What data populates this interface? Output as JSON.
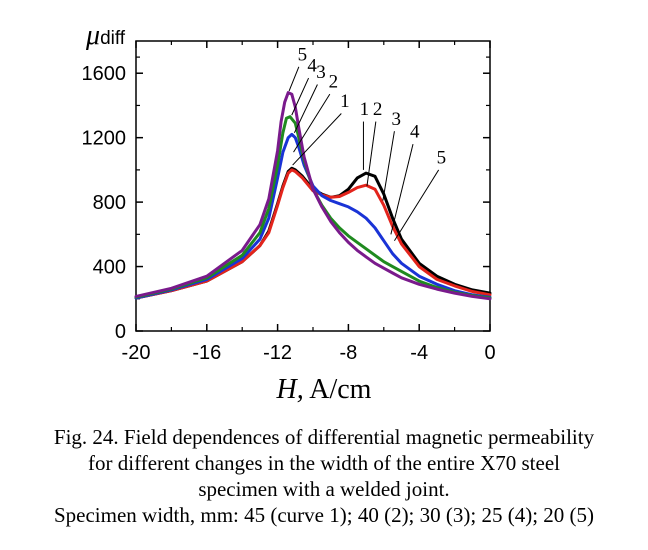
{
  "caption": {
    "line1": "Fig. 24. Field dependences of differential magnetic permeability",
    "line2": "for different changes in the width of the entire X70 steel",
    "line3": "specimen with a welded joint.",
    "line4": "Specimen width, mm: 45 (curve 1); 40 (2); 30 (3); 25 (4); 20 (5)"
  },
  "chart_data": {
    "type": "line",
    "title": "",
    "xlabel": "H, A/cm",
    "ylabel": "μdiff",
    "xlim": [
      -20,
      0
    ],
    "ylim": [
      0,
      1800
    ],
    "xticks": [
      -20,
      -16,
      -12,
      -8,
      -4,
      0
    ],
    "yticks": [
      0,
      400,
      800,
      1200,
      1600
    ],
    "grid": false,
    "legend": "none",
    "series": [
      {
        "name": "1",
        "color": "#000000",
        "x": [
          -20,
          -18,
          -16,
          -14,
          -13,
          -12.5,
          -12,
          -11.7,
          -11.4,
          -11.2,
          -11,
          -10.6,
          -10,
          -9.5,
          -9,
          -8.5,
          -8,
          -7.5,
          -7,
          -6.5,
          -6,
          -5.5,
          -5,
          -4,
          -3,
          -2,
          -1,
          0
        ],
        "y": [
          205,
          250,
          310,
          430,
          530,
          620,
          790,
          900,
          990,
          1010,
          1000,
          960,
          880,
          850,
          830,
          840,
          880,
          950,
          980,
          960,
          850,
          700,
          570,
          420,
          340,
          290,
          255,
          235
        ]
      },
      {
        "name": "2",
        "color": "#e3241c",
        "x": [
          -20,
          -18,
          -16,
          -14,
          -13,
          -12.5,
          -12,
          -11.7,
          -11.4,
          -11.2,
          -11,
          -10.6,
          -10,
          -9.5,
          -9,
          -8.5,
          -8,
          -7.5,
          -7,
          -6.5,
          -6,
          -5.5,
          -5,
          -4,
          -3,
          -2,
          -1,
          0
        ],
        "y": [
          205,
          250,
          310,
          430,
          530,
          610,
          780,
          890,
          980,
          1000,
          990,
          950,
          870,
          845,
          830,
          835,
          860,
          890,
          905,
          880,
          780,
          650,
          540,
          400,
          320,
          280,
          245,
          225
        ]
      },
      {
        "name": "3",
        "color": "#1a33d6",
        "x": [
          -20,
          -18,
          -16,
          -14,
          -13,
          -12.5,
          -12,
          -11.7,
          -11.4,
          -11.2,
          -11,
          -10.8,
          -10.5,
          -10,
          -9.5,
          -9,
          -8.5,
          -8,
          -7.5,
          -7,
          -6.5,
          -6,
          -5.5,
          -5,
          -4,
          -3,
          -2,
          -1,
          0
        ],
        "y": [
          205,
          255,
          320,
          450,
          570,
          700,
          950,
          1110,
          1200,
          1220,
          1200,
          1140,
          1030,
          900,
          840,
          810,
          790,
          770,
          740,
          700,
          640,
          560,
          480,
          420,
          340,
          290,
          250,
          225,
          210
        ]
      },
      {
        "name": "4",
        "color": "#1f8a1f",
        "x": [
          -20,
          -18,
          -16,
          -14,
          -13,
          -12.5,
          -12,
          -11.7,
          -11.5,
          -11.3,
          -11,
          -10.8,
          -10.5,
          -10,
          -9.5,
          -9,
          -8.5,
          -8,
          -7.5,
          -7,
          -6.5,
          -6,
          -5.5,
          -5,
          -4,
          -3,
          -2,
          -1,
          0
        ],
        "y": [
          210,
          260,
          330,
          470,
          610,
          760,
          1030,
          1230,
          1320,
          1330,
          1290,
          1200,
          1060,
          880,
          780,
          700,
          640,
          590,
          550,
          510,
          470,
          430,
          400,
          370,
          310,
          270,
          240,
          220,
          205
        ]
      },
      {
        "name": "5",
        "color": "#7a1a8c",
        "x": [
          -20,
          -18,
          -16,
          -14,
          -13,
          -12.5,
          -12,
          -11.8,
          -11.6,
          -11.4,
          -11.2,
          -11,
          -10.8,
          -10.5,
          -10,
          -9.5,
          -9,
          -8.5,
          -8,
          -7.5,
          -7,
          -6.5,
          -6,
          -5.5,
          -5,
          -4,
          -3,
          -2,
          -1,
          0
        ],
        "y": [
          215,
          265,
          340,
          500,
          660,
          820,
          1120,
          1300,
          1420,
          1480,
          1470,
          1390,
          1260,
          1080,
          880,
          770,
          680,
          610,
          550,
          500,
          460,
          420,
          390,
          360,
          330,
          290,
          260,
          235,
          215,
          200
        ]
      }
    ],
    "curve_labels": [
      {
        "text": "5",
        "x": -10.6,
        "y": 1680
      },
      {
        "text": "4",
        "x": -10.05,
        "y": 1610
      },
      {
        "text": "3",
        "x": -9.55,
        "y": 1570
      },
      {
        "text": "2",
        "x": -8.85,
        "y": 1510
      },
      {
        "text": "1",
        "x": -8.2,
        "y": 1390
      },
      {
        "text": "1",
        "x": -7.1,
        "y": 1340
      },
      {
        "text": "2",
        "x": -6.35,
        "y": 1340
      },
      {
        "text": "3",
        "x": -5.3,
        "y": 1280
      },
      {
        "text": "4",
        "x": -4.25,
        "y": 1200
      },
      {
        "text": "5",
        "x": -2.75,
        "y": 1040
      }
    ],
    "leader_lines": [
      {
        "x1": -10.8,
        "y1": 1640,
        "x2": -11.35,
        "y2": 1490
      },
      {
        "x1": -10.25,
        "y1": 1570,
        "x2": -11.2,
        "y2": 1340
      },
      {
        "x1": -9.75,
        "y1": 1530,
        "x2": -11.05,
        "y2": 1230
      },
      {
        "x1": -9.05,
        "y1": 1470,
        "x2": -11.1,
        "y2": 1110
      },
      {
        "x1": -8.4,
        "y1": 1350,
        "x2": -11.15,
        "y2": 1030
      },
      {
        "x1": -7.15,
        "y1": 1300,
        "x2": -7.15,
        "y2": 1000
      },
      {
        "x1": -6.45,
        "y1": 1300,
        "x2": -6.95,
        "y2": 900
      },
      {
        "x1": -5.4,
        "y1": 1240,
        "x2": -6.05,
        "y2": 810
      },
      {
        "x1": -4.35,
        "y1": 1160,
        "x2": -5.6,
        "y2": 600
      },
      {
        "x1": -2.9,
        "y1": 1000,
        "x2": -5.4,
        "y2": 560
      }
    ]
  }
}
